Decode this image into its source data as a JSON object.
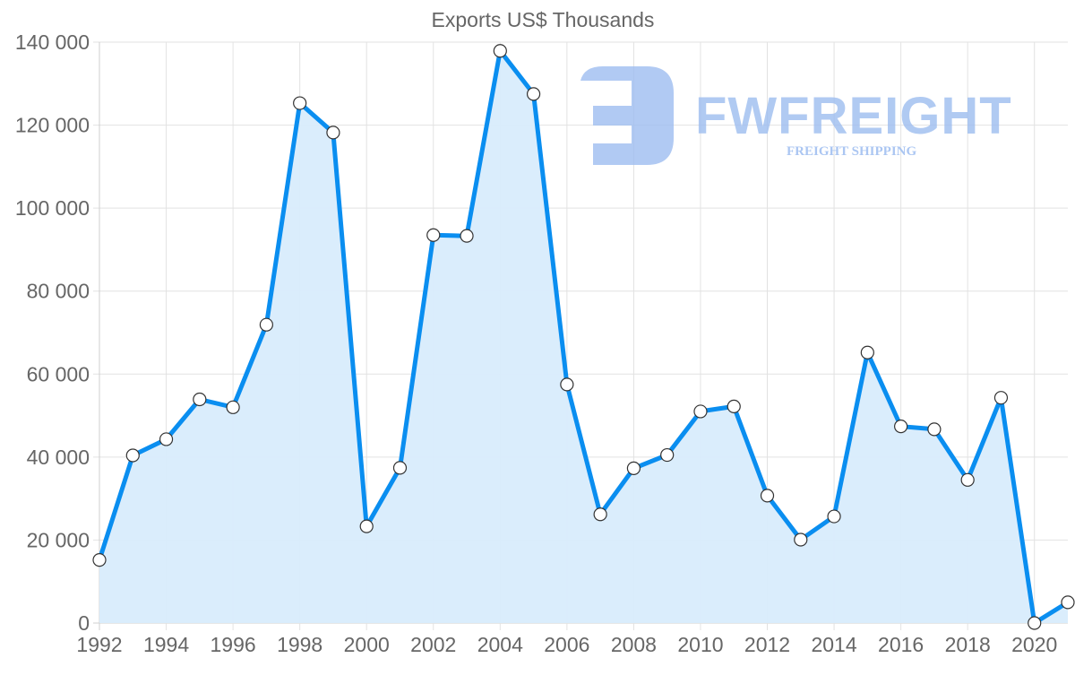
{
  "chart_data": {
    "type": "line",
    "title": "Exports US$ Thousands",
    "xlabel": "",
    "ylabel": "",
    "filled_area": true,
    "x": [
      1992,
      1993,
      1994,
      1995,
      1996,
      1997,
      1998,
      1999,
      2000,
      2001,
      2002,
      2003,
      2004,
      2005,
      2006,
      2007,
      2008,
      2009,
      2010,
      2011,
      2012,
      2013,
      2014,
      2015,
      2016,
      2017,
      2018,
      2019,
      2020,
      2021
    ],
    "series": [
      {
        "name": "Exports US$ Thousands",
        "values": [
          15200,
          40400,
          44300,
          53900,
          52000,
          71900,
          125300,
          118200,
          23300,
          37400,
          93500,
          93300,
          137900,
          127500,
          57500,
          26200,
          37300,
          40500,
          51000,
          52200,
          30700,
          20100,
          25700,
          65200,
          47400,
          46700,
          34500,
          54300,
          0,
          5000
        ]
      }
    ],
    "ylim": [
      0,
      140000
    ],
    "xlim": [
      1992,
      2021
    ],
    "y_ticks": [
      "0",
      "20 000",
      "40 000",
      "60 000",
      "80 000",
      "100 000",
      "120 000",
      "140 000"
    ],
    "x_ticks": [
      "1992",
      "1994",
      "1996",
      "1998",
      "2000",
      "2002",
      "2004",
      "2006",
      "2008",
      "2010",
      "2012",
      "2014",
      "2016",
      "2018",
      "2020"
    ],
    "grid": true,
    "legend": "none",
    "colors": {
      "line": "#0a8ef0",
      "fill": "#d8ecfc",
      "point_fill": "#ffffff",
      "point_stroke": "#333333",
      "grid": "#e2e2e2",
      "text": "#666666"
    }
  },
  "watermark": {
    "brand": "FWFREIGHT",
    "tagline": "FREIGHT SHIPPING",
    "color": "#9dbdf0"
  }
}
